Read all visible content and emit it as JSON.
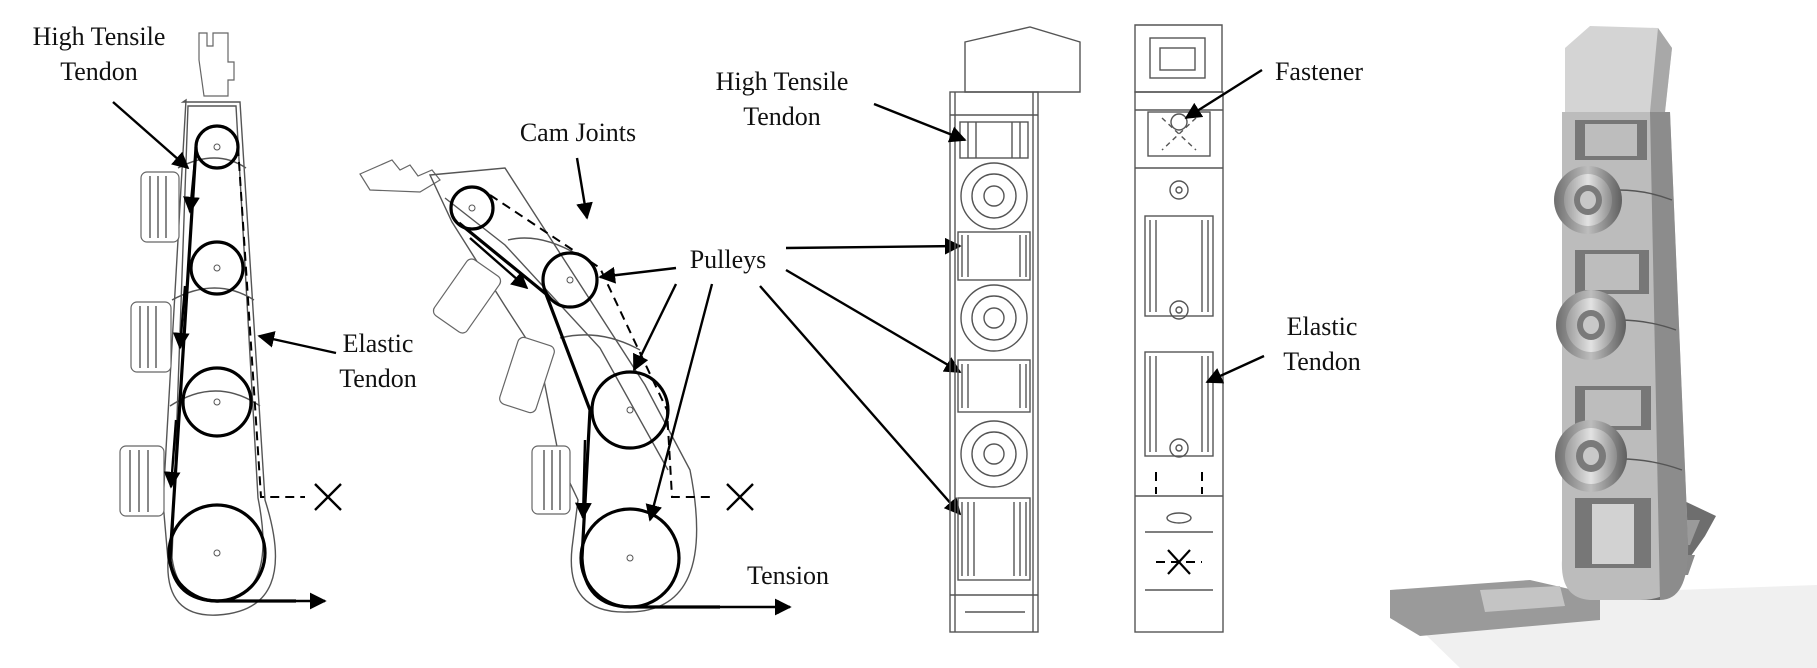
{
  "labels": {
    "high_tensile_tendon_1": [
      "High Tensile",
      "Tendon"
    ],
    "elastic_tendon_1": [
      "Elastic",
      "Tendon"
    ],
    "cam_joints": "Cam Joints",
    "pulleys": "Pulleys",
    "tension": "Tension",
    "high_tensile_tendon_2": [
      "High Tensile",
      "Tendon"
    ],
    "fastener": "Fastener",
    "elastic_tendon_2": [
      "Elastic",
      "Tendon"
    ]
  },
  "colors": {
    "line": "#000000",
    "outline": "#555555",
    "render_light": "#d4d4d4",
    "render_mid": "#a8a8a8",
    "render_dark": "#6e6e6e"
  }
}
